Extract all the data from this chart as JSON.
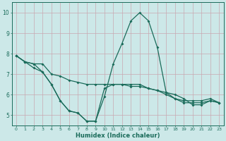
{
  "xlabel": "Humidex (Indice chaleur)",
  "bg_color": "#cce8e8",
  "line_color": "#1a6b5a",
  "grid_color": "#b8d4d4",
  "xlim": [
    -0.5,
    23.5
  ],
  "ylim": [
    4.5,
    10.5
  ],
  "xticks": [
    0,
    1,
    2,
    3,
    4,
    5,
    6,
    7,
    8,
    9,
    10,
    11,
    12,
    13,
    14,
    15,
    16,
    17,
    18,
    19,
    20,
    21,
    22,
    23
  ],
  "yticks": [
    5,
    6,
    7,
    8,
    9,
    10
  ],
  "line1_x": [
    0,
    1,
    2,
    3,
    4,
    5,
    6,
    7,
    8,
    9,
    10,
    11,
    12,
    13,
    14,
    15,
    16,
    17,
    18,
    19,
    20,
    21,
    22,
    23
  ],
  "line1_y": [
    7.9,
    7.6,
    7.5,
    7.5,
    7.0,
    6.9,
    6.7,
    6.6,
    6.5,
    6.5,
    6.5,
    6.5,
    6.5,
    6.4,
    6.4,
    6.3,
    6.2,
    6.1,
    5.8,
    5.7,
    5.7,
    5.7,
    5.8,
    5.6
  ],
  "line2_x": [
    0,
    1,
    2,
    3,
    4,
    5,
    6,
    7,
    8,
    9,
    10,
    11,
    12,
    13,
    14,
    15,
    16,
    17,
    18,
    19,
    20,
    21,
    22,
    23
  ],
  "line2_y": [
    7.9,
    7.6,
    7.5,
    7.1,
    6.5,
    5.7,
    5.2,
    5.1,
    4.7,
    4.7,
    5.9,
    7.5,
    8.5,
    9.6,
    10.0,
    9.6,
    8.3,
    6.1,
    6.0,
    5.8,
    5.5,
    5.5,
    5.7,
    5.6
  ],
  "line3_x": [
    0,
    1,
    2,
    3,
    4,
    5,
    6,
    7,
    8,
    9,
    10,
    11,
    12,
    13,
    14,
    15,
    16,
    17,
    18,
    19,
    20,
    21,
    22,
    23
  ],
  "line3_y": [
    7.9,
    7.6,
    7.3,
    7.1,
    6.5,
    5.7,
    5.2,
    5.1,
    4.7,
    4.7,
    6.3,
    6.5,
    6.5,
    6.5,
    6.5,
    6.3,
    6.2,
    6.0,
    5.8,
    5.6,
    5.6,
    5.6,
    5.7,
    5.6
  ]
}
